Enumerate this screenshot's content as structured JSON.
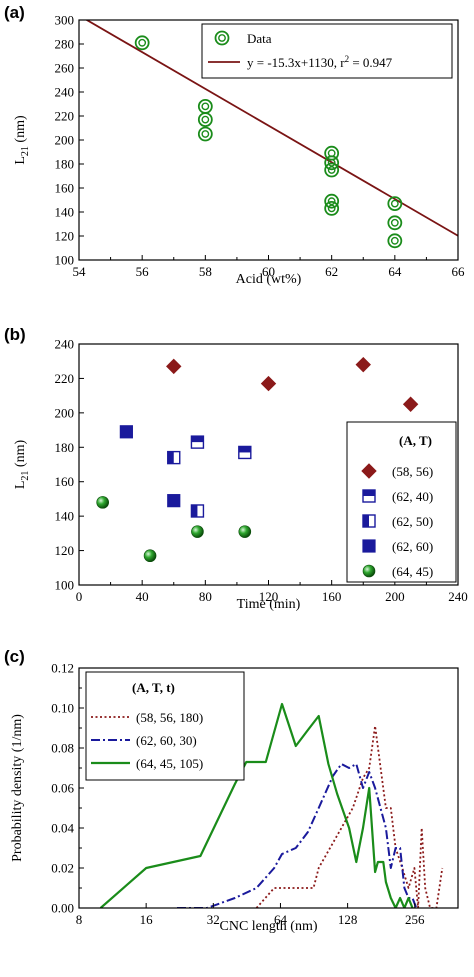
{
  "colors": {
    "green": "#1a8c1a",
    "dark_red": "#8b1a1a",
    "navy": "#1a1a9c",
    "line_red": "#7a1414"
  },
  "chart_data": [
    {
      "panel": "(a)",
      "type": "scatter",
      "xlabel": "Acid (wt%)",
      "ylabel_main": "L",
      "ylabel_sub": "21",
      "ylabel_unit": " (nm)",
      "xlim": [
        54,
        66
      ],
      "ylim": [
        100,
        300
      ],
      "xticks": [
        54,
        56,
        58,
        60,
        62,
        64,
        66
      ],
      "yticks": [
        100,
        120,
        140,
        160,
        180,
        200,
        220,
        240,
        260,
        280,
        300
      ],
      "series": [
        {
          "name": "Data",
          "color": "#1a8c1a",
          "marker": "open-circle-dot",
          "points": [
            [
              56,
              281
            ],
            [
              58,
              228
            ],
            [
              58,
              217
            ],
            [
              58,
              205
            ],
            [
              62,
              189
            ],
            [
              62,
              181
            ],
            [
              62,
              175
            ],
            [
              62,
              149
            ],
            [
              62,
              143
            ],
            [
              64,
              147
            ],
            [
              64,
              131
            ],
            [
              64,
              116
            ]
          ]
        }
      ],
      "fit": {
        "label": "y = -15.3x+1130, r",
        "label_sup": "2",
        "label_tail": " = 0.947",
        "slope": -15.3,
        "intercept": 1130,
        "color": "#7a1414"
      },
      "legend_position": "top-right"
    },
    {
      "panel": "(b)",
      "type": "scatter",
      "xlabel": "Time (min)",
      "ylabel_main": "L",
      "ylabel_sub": "21",
      "ylabel_unit": " (nm)",
      "xlim": [
        0,
        240
      ],
      "ylim": [
        100,
        240
      ],
      "xticks": [
        0,
        40,
        80,
        120,
        160,
        200,
        240
      ],
      "yticks": [
        100,
        120,
        140,
        160,
        180,
        200,
        220,
        240
      ],
      "legend_title": "(A, T)",
      "series": [
        {
          "name": "(58, 56)",
          "color": "#8b1a1a",
          "marker": "diamond",
          "points": [
            [
              60,
              227
            ],
            [
              120,
              217
            ],
            [
              180,
              228
            ],
            [
              210,
              205
            ]
          ]
        },
        {
          "name": "(62, 40)",
          "color": "#1a1a9c",
          "marker": "square-top-half",
          "points": [
            [
              75,
              183
            ],
            [
              105,
              177
            ]
          ]
        },
        {
          "name": "(62, 50)",
          "color": "#1a1a9c",
          "marker": "square-left-half",
          "points": [
            [
              60,
              174
            ],
            [
              75,
              143
            ]
          ]
        },
        {
          "name": "(62, 60)",
          "color": "#1a1a9c",
          "marker": "square-filled",
          "points": [
            [
              30,
              189
            ],
            [
              60,
              149
            ]
          ]
        },
        {
          "name": "(64, 45)",
          "color": "#1a8c1a",
          "marker": "sphere",
          "points": [
            [
              15,
              148
            ],
            [
              45,
              117
            ],
            [
              75,
              131
            ],
            [
              105,
              131
            ]
          ]
        }
      ],
      "legend_position": "right"
    },
    {
      "panel": "(c)",
      "type": "line",
      "xscale": "log2",
      "xlabel": "CNC length (nm)",
      "ylabel": "Probability density (1/nm)",
      "xlim": [
        8,
        400
      ],
      "ylim": [
        0,
        0.12
      ],
      "xticks": [
        8,
        16,
        32,
        64,
        128,
        256
      ],
      "ytick_labels": [
        "0.00",
        "0.02",
        "0.04",
        "0.06",
        "0.08",
        "0.10",
        "0.12"
      ],
      "yticks": [
        0,
        0.02,
        0.04,
        0.06,
        0.08,
        0.1,
        0.12
      ],
      "legend_title": "(A,  T,   t)",
      "series": [
        {
          "name": "(58, 56, 180)",
          "color": "#8b1a1a",
          "style": "dotted",
          "points": [
            [
              50,
              0
            ],
            [
              60,
              0.01
            ],
            [
              90,
              0.01
            ],
            [
              95,
              0.02
            ],
            [
              120,
              0.04
            ],
            [
              135,
              0.05
            ],
            [
              150,
              0.065
            ],
            [
              160,
              0.07
            ],
            [
              170,
              0.091
            ],
            [
              180,
              0.07
            ],
            [
              190,
              0.05
            ],
            [
              200,
              0.05
            ],
            [
              210,
              0.03
            ],
            [
              225,
              0.02
            ],
            [
              240,
              0.01
            ],
            [
              255,
              0.02
            ],
            [
              265,
              0.0
            ],
            [
              275,
              0.04
            ],
            [
              285,
              0.01
            ],
            [
              300,
              0.0
            ],
            [
              320,
              0.0
            ],
            [
              340,
              0.02
            ]
          ]
        },
        {
          "name": "(62, 60, 30)",
          "color": "#1a1a9c",
          "style": "dashdot",
          "points": [
            [
              22,
              0
            ],
            [
              30,
              0
            ],
            [
              40,
              0.005
            ],
            [
              50,
              0.01
            ],
            [
              60,
              0.02
            ],
            [
              65,
              0.027
            ],
            [
              75,
              0.03
            ],
            [
              85,
              0.038
            ],
            [
              95,
              0.05
            ],
            [
              110,
              0.066
            ],
            [
              120,
              0.072
            ],
            [
              130,
              0.07
            ],
            [
              140,
              0.072
            ],
            [
              150,
              0.06
            ],
            [
              160,
              0.068
            ],
            [
              170,
              0.06
            ],
            [
              190,
              0.04
            ],
            [
              200,
              0.02
            ],
            [
              210,
              0.03
            ],
            [
              220,
              0.03
            ],
            [
              230,
              0.01
            ],
            [
              240,
              0.005
            ],
            [
              250,
              0.005
            ],
            [
              260,
              0.0
            ]
          ]
        },
        {
          "name": "(64, 45, 105)",
          "color": "#1a8c1a",
          "style": "solid",
          "points": [
            [
              10,
              0
            ],
            [
              16,
              0.02
            ],
            [
              28,
              0.026
            ],
            [
              40,
              0.062
            ],
            [
              45,
              0.073
            ],
            [
              55,
              0.073
            ],
            [
              65,
              0.102
            ],
            [
              75,
              0.081
            ],
            [
              85,
              0.089
            ],
            [
              95,
              0.096
            ],
            [
              105,
              0.072
            ],
            [
              115,
              0.057
            ],
            [
              130,
              0.04
            ],
            [
              140,
              0.023
            ],
            [
              150,
              0.04
            ],
            [
              160,
              0.06
            ],
            [
              170,
              0.018
            ],
            [
              175,
              0.023
            ],
            [
              185,
              0.023
            ],
            [
              190,
              0.013
            ],
            [
              200,
              0.005
            ],
            [
              210,
              0.0
            ],
            [
              220,
              0.005
            ],
            [
              230,
              0.0
            ],
            [
              240,
              0.005
            ],
            [
              250,
              0.0
            ]
          ]
        }
      ],
      "legend_position": "top-left"
    }
  ]
}
